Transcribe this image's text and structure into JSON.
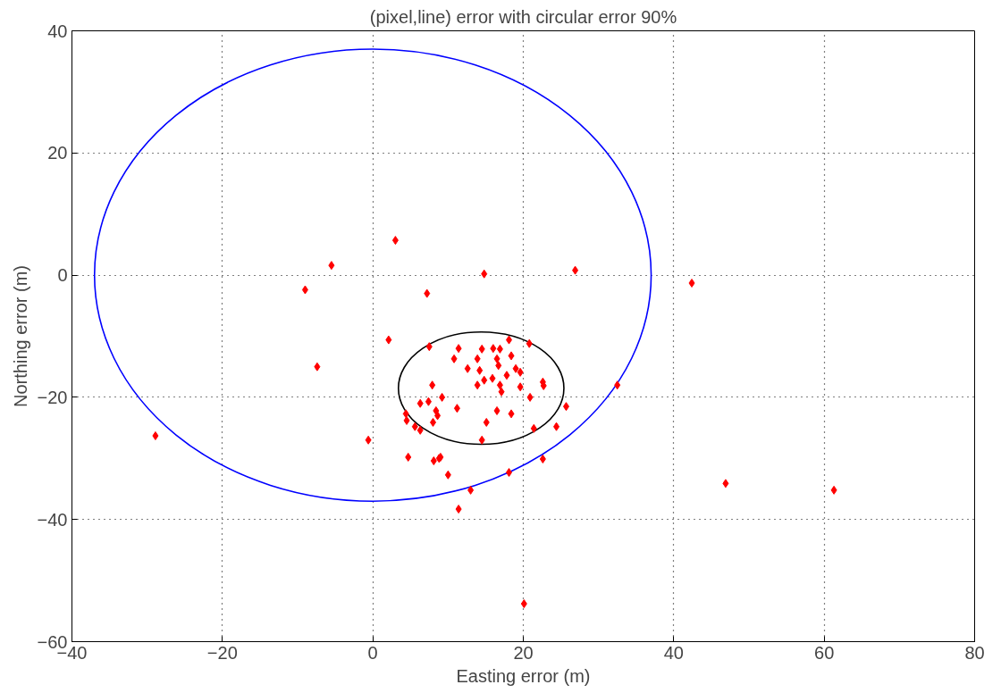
{
  "chart_data": {
    "type": "scatter",
    "title": "(pixel,line) error with circular error 90%",
    "xlabel": "Easting error (m)",
    "ylabel": "Northing error (m)",
    "xlim": [
      -40,
      80
    ],
    "ylim": [
      -60,
      40
    ],
    "xticks": [
      -40,
      -20,
      0,
      20,
      40,
      60,
      80
    ],
    "yticks": [
      -60,
      -40,
      -20,
      0,
      20,
      40
    ],
    "grid": true,
    "series": [
      {
        "color": "#ff0000",
        "marker": "diamond",
        "x": [
          -28.9,
          -9.0,
          -5.5,
          -7.4,
          3.0,
          7.2,
          14.8,
          26.9,
          42.4,
          -0.6,
          46.9,
          61.3,
          32.5,
          20.1,
          22.6,
          18.1,
          13.0,
          11.4,
          10.0,
          8.8,
          8.1,
          2.1,
          7.5,
          11.4,
          10.8,
          12.6,
          13.9,
          14.5,
          14.2,
          16.0,
          16.9,
          16.5,
          18.1,
          18.4,
          19.0,
          17.8,
          16.7,
          15.9,
          14.8,
          13.9,
          16.9,
          17.1,
          19.6,
          19.6,
          20.8,
          22.6,
          22.7,
          20.9,
          25.7,
          24.4,
          21.4,
          18.4,
          16.5,
          15.1,
          14.5,
          11.2,
          9.2,
          7.9,
          7.4,
          6.3,
          8.4,
          8.6,
          8.0,
          4.4,
          4.5,
          5.6,
          6.3,
          4.7,
          9.0
        ],
        "values": [
          -26.3,
          -2.4,
          1.6,
          -15.0,
          5.7,
          -3.0,
          0.2,
          0.8,
          -1.3,
          -27.0,
          -34.1,
          -35.2,
          -18.0,
          -53.8,
          -30.1,
          -32.3,
          -35.2,
          -38.3,
          -32.7,
          -30.0,
          -30.4,
          -10.6,
          -11.7,
          -12.0,
          -13.7,
          -15.3,
          -13.7,
          -12.1,
          -15.6,
          -12.0,
          -12.1,
          -13.7,
          -10.6,
          -13.2,
          -15.3,
          -16.4,
          -14.8,
          -16.9,
          -17.2,
          -18.0,
          -18.0,
          -19.1,
          -18.3,
          -15.9,
          -11.2,
          -17.5,
          -18.1,
          -20.0,
          -21.5,
          -24.8,
          -25.1,
          -22.7,
          -22.2,
          -24.1,
          -27.0,
          -21.8,
          -20.0,
          -18.0,
          -20.7,
          -21.0,
          -22.2,
          -23.0,
          -24.1,
          -22.7,
          -23.8,
          -24.8,
          -25.4,
          -29.8,
          -29.8
        ]
      }
    ]
  }
}
